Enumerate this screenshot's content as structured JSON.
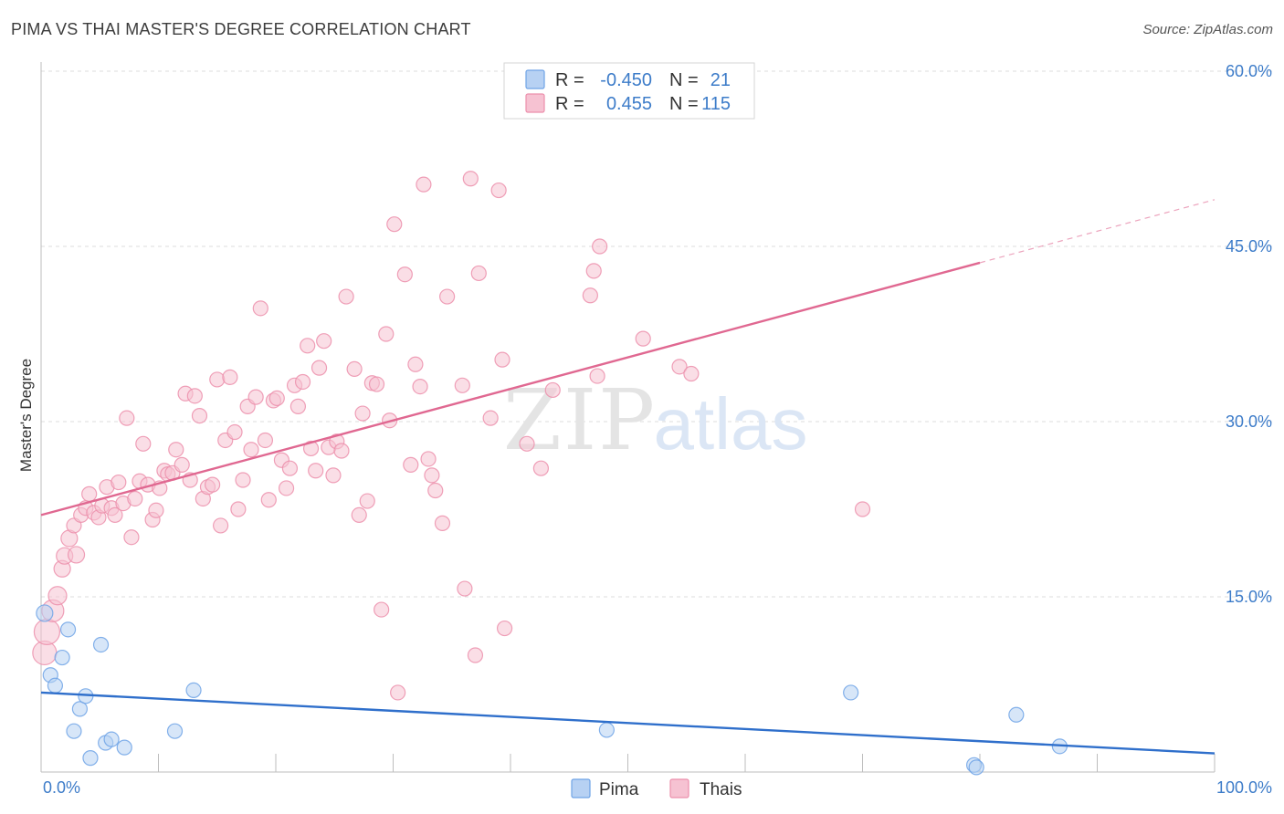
{
  "title": "PIMA VS THAI MASTER'S DEGREE CORRELATION CHART",
  "source": "Source: ZipAtlas.com",
  "watermark": {
    "zip": "ZIP",
    "atlas": "atlas"
  },
  "chart_data": {
    "type": "scatter",
    "xlabel": "",
    "ylabel": "Master's Degree",
    "xlim": [
      0,
      100
    ],
    "ylim": [
      0,
      60
    ],
    "x_tick_labels": [
      "0.0%",
      "100.0%"
    ],
    "y_ticks": [
      15,
      30,
      45,
      60
    ],
    "y_tick_labels": [
      "15.0%",
      "30.0%",
      "45.0%",
      "60.0%"
    ],
    "grid": true,
    "legend_position": "top-center",
    "series": [
      {
        "name": "Pima",
        "color": "#6fa3e6",
        "fill": "#b7d1f3",
        "line_color": "#2f6fcb",
        "r": "-0.450",
        "n": "21",
        "trend": {
          "x0": 0,
          "y0": 6.8,
          "x1": 100,
          "y1": 1.6,
          "dash_from": 100
        },
        "points": [
          {
            "x": 0.3,
            "y": 13.6,
            "s": 9
          },
          {
            "x": 0.8,
            "y": 8.3,
            "s": 8
          },
          {
            "x": 1.2,
            "y": 7.4,
            "s": 8
          },
          {
            "x": 1.8,
            "y": 9.8,
            "s": 8
          },
          {
            "x": 2.3,
            "y": 12.2,
            "s": 8
          },
          {
            "x": 2.8,
            "y": 3.5,
            "s": 8
          },
          {
            "x": 3.3,
            "y": 5.4,
            "s": 8
          },
          {
            "x": 3.8,
            "y": 6.5,
            "s": 8
          },
          {
            "x": 4.2,
            "y": 1.2,
            "s": 8
          },
          {
            "x": 5.1,
            "y": 10.9,
            "s": 8
          },
          {
            "x": 5.5,
            "y": 2.5,
            "s": 8
          },
          {
            "x": 6.0,
            "y": 2.8,
            "s": 8
          },
          {
            "x": 7.1,
            "y": 2.1,
            "s": 8
          },
          {
            "x": 11.4,
            "y": 3.5,
            "s": 8
          },
          {
            "x": 13.0,
            "y": 7.0,
            "s": 8
          },
          {
            "x": 48.2,
            "y": 3.6,
            "s": 8
          },
          {
            "x": 69.0,
            "y": 6.8,
            "s": 8
          },
          {
            "x": 79.5,
            "y": 0.6,
            "s": 8
          },
          {
            "x": 79.7,
            "y": 0.4,
            "s": 8
          },
          {
            "x": 83.1,
            "y": 4.9,
            "s": 8
          },
          {
            "x": 86.8,
            "y": 2.2,
            "s": 8
          }
        ]
      },
      {
        "name": "Thais",
        "color": "#ec8fac",
        "fill": "#f6c2d2",
        "line_color": "#e06891",
        "r": "0.455",
        "n": "115",
        "trend": {
          "x0": 0,
          "y0": 22.0,
          "x1": 100,
          "y1": 49.0,
          "dash_from": 80
        },
        "points": [
          {
            "x": 0.3,
            "y": 10.2,
            "s": 13
          },
          {
            "x": 0.5,
            "y": 12.0,
            "s": 14
          },
          {
            "x": 1.0,
            "y": 13.8,
            "s": 12
          },
          {
            "x": 1.4,
            "y": 15.1,
            "s": 10
          },
          {
            "x": 1.8,
            "y": 17.4,
            "s": 9
          },
          {
            "x": 2.0,
            "y": 18.5,
            "s": 9
          },
          {
            "x": 2.4,
            "y": 20.0,
            "s": 9
          },
          {
            "x": 2.8,
            "y": 21.1,
            "s": 8
          },
          {
            "x": 3.0,
            "y": 18.6,
            "s": 9
          },
          {
            "x": 3.4,
            "y": 22.0,
            "s": 8
          },
          {
            "x": 3.8,
            "y": 22.6,
            "s": 8
          },
          {
            "x": 4.1,
            "y": 23.8,
            "s": 8
          },
          {
            "x": 4.5,
            "y": 22.2,
            "s": 8
          },
          {
            "x": 4.9,
            "y": 21.8,
            "s": 8
          },
          {
            "x": 5.2,
            "y": 22.8,
            "s": 8
          },
          {
            "x": 5.6,
            "y": 24.4,
            "s": 8
          },
          {
            "x": 6.0,
            "y": 22.6,
            "s": 8
          },
          {
            "x": 6.3,
            "y": 22.0,
            "s": 8
          },
          {
            "x": 6.6,
            "y": 24.8,
            "s": 8
          },
          {
            "x": 7.0,
            "y": 23.0,
            "s": 8
          },
          {
            "x": 7.3,
            "y": 30.3,
            "s": 8
          },
          {
            "x": 7.7,
            "y": 20.1,
            "s": 8
          },
          {
            "x": 8.0,
            "y": 23.4,
            "s": 8
          },
          {
            "x": 8.4,
            "y": 24.9,
            "s": 8
          },
          {
            "x": 8.7,
            "y": 28.1,
            "s": 8
          },
          {
            "x": 9.1,
            "y": 24.6,
            "s": 8
          },
          {
            "x": 9.5,
            "y": 21.6,
            "s": 8
          },
          {
            "x": 9.8,
            "y": 22.4,
            "s": 8
          },
          {
            "x": 10.1,
            "y": 24.3,
            "s": 8
          },
          {
            "x": 10.5,
            "y": 25.8,
            "s": 8
          },
          {
            "x": 10.8,
            "y": 25.5,
            "s": 8
          },
          {
            "x": 11.2,
            "y": 25.6,
            "s": 8
          },
          {
            "x": 11.5,
            "y": 27.6,
            "s": 8
          },
          {
            "x": 12.0,
            "y": 26.3,
            "s": 8
          },
          {
            "x": 12.3,
            "y": 32.4,
            "s": 8
          },
          {
            "x": 12.7,
            "y": 25.0,
            "s": 8
          },
          {
            "x": 13.1,
            "y": 32.2,
            "s": 8
          },
          {
            "x": 13.5,
            "y": 30.5,
            "s": 8
          },
          {
            "x": 13.8,
            "y": 23.4,
            "s": 8
          },
          {
            "x": 14.2,
            "y": 24.4,
            "s": 8
          },
          {
            "x": 14.6,
            "y": 24.6,
            "s": 8
          },
          {
            "x": 15.0,
            "y": 33.6,
            "s": 8
          },
          {
            "x": 15.3,
            "y": 21.1,
            "s": 8
          },
          {
            "x": 15.7,
            "y": 28.4,
            "s": 8
          },
          {
            "x": 16.1,
            "y": 33.8,
            "s": 8
          },
          {
            "x": 16.5,
            "y": 29.1,
            "s": 8
          },
          {
            "x": 16.8,
            "y": 22.5,
            "s": 8
          },
          {
            "x": 17.2,
            "y": 25.0,
            "s": 8
          },
          {
            "x": 17.6,
            "y": 31.3,
            "s": 8
          },
          {
            "x": 17.9,
            "y": 27.6,
            "s": 8
          },
          {
            "x": 18.3,
            "y": 32.1,
            "s": 8
          },
          {
            "x": 18.7,
            "y": 39.7,
            "s": 8
          },
          {
            "x": 19.1,
            "y": 28.4,
            "s": 8
          },
          {
            "x": 19.4,
            "y": 23.3,
            "s": 8
          },
          {
            "x": 19.8,
            "y": 31.8,
            "s": 8
          },
          {
            "x": 20.1,
            "y": 32.0,
            "s": 8
          },
          {
            "x": 20.5,
            "y": 26.7,
            "s": 8
          },
          {
            "x": 20.9,
            "y": 24.3,
            "s": 8
          },
          {
            "x": 21.2,
            "y": 26.0,
            "s": 8
          },
          {
            "x": 21.6,
            "y": 33.1,
            "s": 8
          },
          {
            "x": 21.9,
            "y": 31.3,
            "s": 8
          },
          {
            "x": 22.3,
            "y": 33.4,
            "s": 8
          },
          {
            "x": 22.7,
            "y": 36.5,
            "s": 8
          },
          {
            "x": 23.0,
            "y": 27.7,
            "s": 8
          },
          {
            "x": 23.4,
            "y": 25.8,
            "s": 8
          },
          {
            "x": 23.7,
            "y": 34.6,
            "s": 8
          },
          {
            "x": 24.1,
            "y": 36.9,
            "s": 8
          },
          {
            "x": 24.5,
            "y": 27.8,
            "s": 8
          },
          {
            "x": 24.9,
            "y": 25.4,
            "s": 8
          },
          {
            "x": 25.2,
            "y": 28.3,
            "s": 8
          },
          {
            "x": 25.6,
            "y": 27.5,
            "s": 8
          },
          {
            "x": 26.0,
            "y": 40.7,
            "s": 8
          },
          {
            "x": 26.7,
            "y": 34.5,
            "s": 8
          },
          {
            "x": 27.1,
            "y": 22.0,
            "s": 8
          },
          {
            "x": 27.4,
            "y": 30.7,
            "s": 8
          },
          {
            "x": 27.8,
            "y": 23.2,
            "s": 8
          },
          {
            "x": 28.2,
            "y": 33.3,
            "s": 8
          },
          {
            "x": 28.6,
            "y": 33.2,
            "s": 8
          },
          {
            "x": 29.0,
            "y": 13.9,
            "s": 8
          },
          {
            "x": 29.4,
            "y": 37.5,
            "s": 8
          },
          {
            "x": 29.7,
            "y": 30.1,
            "s": 8
          },
          {
            "x": 30.1,
            "y": 46.9,
            "s": 8
          },
          {
            "x": 30.4,
            "y": 6.8,
            "s": 8
          },
          {
            "x": 31.0,
            "y": 42.6,
            "s": 8
          },
          {
            "x": 31.5,
            "y": 26.3,
            "s": 8
          },
          {
            "x": 31.9,
            "y": 34.9,
            "s": 8
          },
          {
            "x": 32.3,
            "y": 33.0,
            "s": 8
          },
          {
            "x": 32.6,
            "y": 50.3,
            "s": 8
          },
          {
            "x": 33.0,
            "y": 26.8,
            "s": 8
          },
          {
            "x": 33.3,
            "y": 25.4,
            "s": 8
          },
          {
            "x": 33.6,
            "y": 24.1,
            "s": 8
          },
          {
            "x": 34.2,
            "y": 21.3,
            "s": 8
          },
          {
            "x": 34.6,
            "y": 40.7,
            "s": 8
          },
          {
            "x": 35.9,
            "y": 33.1,
            "s": 8
          },
          {
            "x": 36.1,
            "y": 15.7,
            "s": 8
          },
          {
            "x": 36.6,
            "y": 50.8,
            "s": 8
          },
          {
            "x": 37.0,
            "y": 10.0,
            "s": 8
          },
          {
            "x": 37.3,
            "y": 42.7,
            "s": 8
          },
          {
            "x": 38.3,
            "y": 30.3,
            "s": 8
          },
          {
            "x": 39.0,
            "y": 49.8,
            "s": 8
          },
          {
            "x": 39.3,
            "y": 35.3,
            "s": 8
          },
          {
            "x": 39.5,
            "y": 12.3,
            "s": 8
          },
          {
            "x": 41.4,
            "y": 28.1,
            "s": 8
          },
          {
            "x": 42.6,
            "y": 26.0,
            "s": 8
          },
          {
            "x": 43.6,
            "y": 32.7,
            "s": 8
          },
          {
            "x": 46.8,
            "y": 40.8,
            "s": 8
          },
          {
            "x": 47.1,
            "y": 42.9,
            "s": 8
          },
          {
            "x": 47.4,
            "y": 33.9,
            "s": 8
          },
          {
            "x": 47.6,
            "y": 45.0,
            "s": 8
          },
          {
            "x": 51.3,
            "y": 37.1,
            "s": 8
          },
          {
            "x": 54.4,
            "y": 34.7,
            "s": 8
          },
          {
            "x": 55.4,
            "y": 34.1,
            "s": 8
          },
          {
            "x": 70.0,
            "y": 22.5,
            "s": 8
          }
        ]
      }
    ]
  }
}
